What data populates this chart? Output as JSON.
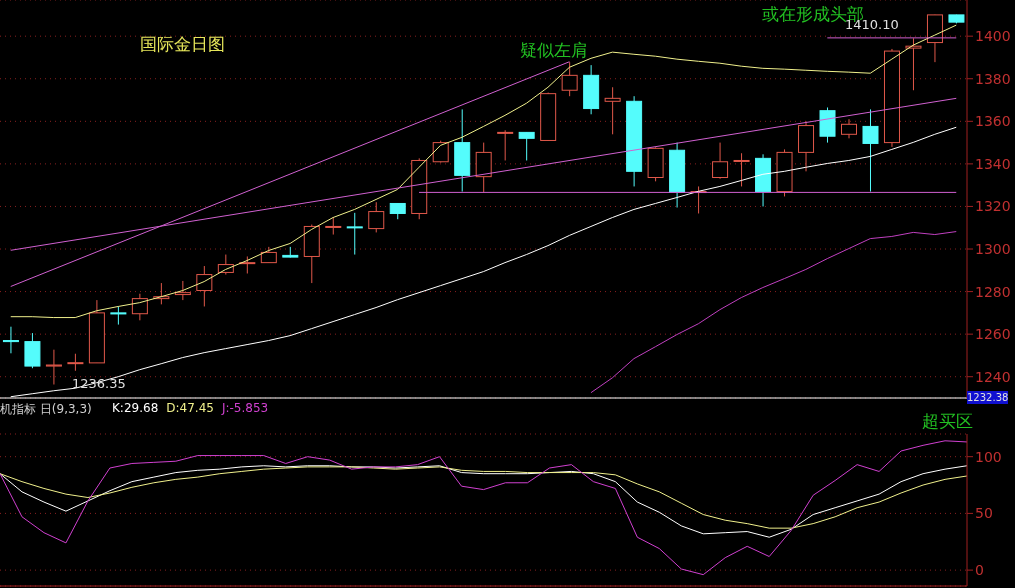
{
  "chart_data": [
    {
      "type": "candlestick",
      "title": "国际金日图",
      "categories": [
        null,
        null,
        null,
        null,
        null,
        null,
        null,
        null,
        null,
        null,
        null,
        null,
        null,
        null,
        null,
        null,
        null,
        null,
        null,
        null,
        null,
        null,
        null,
        null,
        null,
        null,
        null,
        null,
        null,
        null,
        null,
        null,
        null,
        null,
        null,
        null,
        null,
        null,
        null,
        null,
        null,
        null,
        null,
        null,
        null
      ],
      "ohlc": [
        [
          1257,
          1263.5,
          1251,
          1256.5
        ],
        [
          1256.5,
          1260.5,
          1244,
          1245
        ],
        [
          1245,
          1252.7,
          1236.35,
          1245.5
        ],
        [
          1246.2,
          1250.8,
          1242.8,
          1246.6
        ],
        [
          1246.5,
          1276,
          1246.5,
          1270
        ],
        [
          1270,
          1273,
          1264.5,
          1269.5
        ],
        [
          1269.6,
          1279,
          1266.5,
          1276.7
        ],
        [
          1276.7,
          1284,
          1274,
          1277.6
        ],
        [
          1278.6,
          1285,
          1276,
          1279.5
        ],
        [
          1280.5,
          1292,
          1273,
          1288
        ],
        [
          1289,
          1297.4,
          1288,
          1292.7
        ],
        [
          1293.2,
          1296.5,
          1288.5,
          1293.6
        ],
        [
          1293.6,
          1301,
          1293.6,
          1298.4
        ],
        [
          1297,
          1301,
          1296,
          1296.2
        ],
        [
          1296.5,
          1311.5,
          1284,
          1310.6
        ],
        [
          1310.2,
          1315,
          1306.8,
          1310.6
        ],
        [
          1310.4,
          1317,
          1297.4,
          1310
        ],
        [
          1309.6,
          1322,
          1307.8,
          1317.6
        ],
        [
          1321.4,
          1321.4,
          1314,
          1316.7
        ],
        [
          1316.7,
          1342.6,
          1314,
          1341.6
        ],
        [
          1341,
          1350.9,
          1340.6,
          1350
        ],
        [
          1350,
          1365.6,
          1327,
          1334.6
        ],
        [
          1334,
          1350,
          1326.6,
          1345.4
        ],
        [
          1354.4,
          1355.8,
          1341.6,
          1354.8
        ],
        [
          1354.8,
          1354.8,
          1341.6,
          1352
        ],
        [
          1351,
          1373.5,
          1351,
          1373
        ],
        [
          1374.6,
          1387.8,
          1371.8,
          1381.6
        ],
        [
          1381.6,
          1386.4,
          1363.3,
          1366
        ],
        [
          1369.4,
          1376,
          1353.9,
          1370.8
        ],
        [
          1369.4,
          1371.8,
          1329.4,
          1336.5
        ],
        [
          1333.6,
          1347.8,
          1331.8,
          1347.3
        ],
        [
          1346.4,
          1350,
          1319.5,
          1326.6
        ],
        [
          1326.6,
          1329.4,
          1316.7,
          1327
        ],
        [
          1333.6,
          1350,
          1333,
          1341
        ],
        [
          1341.2,
          1345,
          1329.4,
          1341.6
        ],
        [
          1342.6,
          1344.5,
          1320,
          1327
        ],
        [
          1327,
          1346.8,
          1324.7,
          1345.4
        ],
        [
          1345.4,
          1360,
          1336.5,
          1358
        ],
        [
          1365,
          1366.5,
          1350,
          1353
        ],
        [
          1353.9,
          1361,
          1352,
          1358.6
        ],
        [
          1357.6,
          1365.6,
          1327,
          1349.6
        ],
        [
          1350,
          1394,
          1348,
          1393
        ],
        [
          1394.4,
          1399,
          1374.6,
          1395.3
        ],
        [
          1397,
          1410.1,
          1387.8,
          1410
        ],
        [
          1410,
          1410.1,
          1406,
          1406.6
        ]
      ],
      "colors": [
        "#54fcfc",
        "#54fcfc",
        "#e0584a",
        "#e0584a",
        "#e0584a",
        "#54fcfc",
        "#e0584a",
        "#e0584a",
        "#e0584a",
        "#e0584a",
        "#e0584a",
        "#e0584a",
        "#e0584a",
        "#54fcfc",
        "#e0584a",
        "#e0584a",
        "#54fcfc",
        "#e0584a",
        "#54fcfc",
        "#e0584a",
        "#e0584a",
        "#54fcfc",
        "#e0584a",
        "#e0584a",
        "#54fcfc",
        "#e0584a",
        "#e0584a",
        "#54fcfc",
        "#e0584a",
        "#54fcfc",
        "#e0584a",
        "#54fcfc",
        "#e0584a",
        "#e0584a",
        "#e0584a",
        "#54fcfc",
        "#e0584a",
        "#e0584a",
        "#54fcfc",
        "#e0584a",
        "#54fcfc",
        "#e0584a",
        "#e0584a",
        "#e0584a",
        "#54fcfc"
      ],
      "series": [
        {
          "type": "line",
          "color": "#f0f08c",
          "values": [
            1268.2,
            1268.2,
            1267.8,
            1267.8,
            1271,
            1273,
            1274.8,
            1277.6,
            1280.5,
            1284.7,
            1290.4,
            1294.6,
            1299.3,
            1302.6,
            1309.2,
            1314.8,
            1318.6,
            1323.3,
            1328,
            1338.4,
            1348.7,
            1352.5,
            1357.6,
            1362.8,
            1368.5,
            1376,
            1385.4,
            1389.6,
            1392.5,
            1391.5,
            1390.6,
            1389.2,
            1388.2,
            1387.3,
            1385.9,
            1384.9,
            1384.5,
            1384,
            1383.5,
            1383.1,
            1382.6,
            1389.2,
            1395.8,
            1400.5,
            1405.2
          ]
        },
        {
          "type": "line",
          "color": "#ffffff",
          "values": [
            1230.6,
            1232,
            1233.4,
            1234.6,
            1237.2,
            1240,
            1243.3,
            1246.1,
            1249,
            1251.3,
            1253.2,
            1255.1,
            1257,
            1259.3,
            1262.6,
            1265.9,
            1269.2,
            1272.5,
            1276.2,
            1279.5,
            1282.8,
            1286.1,
            1289.4,
            1293.6,
            1297.4,
            1301.6,
            1306.4,
            1310.6,
            1314.8,
            1318.6,
            1321.4,
            1324.2,
            1327.1,
            1329.4,
            1332.2,
            1335.1,
            1336.5,
            1338.4,
            1340.2,
            1341.6,
            1343.5,
            1346.8,
            1350.1,
            1353.9,
            1357.2
          ]
        },
        {
          "type": "line",
          "color": "#c040c0",
          "values": [
            null,
            null,
            null,
            null,
            null,
            null,
            null,
            null,
            null,
            null,
            null,
            null,
            null,
            null,
            null,
            null,
            null,
            null,
            null,
            null,
            null,
            null,
            null,
            null,
            null,
            null,
            null,
            1232.5,
            1239.5,
            1248.5,
            1254.1,
            1259.8,
            1264.9,
            1271.5,
            1277.2,
            1281.9,
            1286.1,
            1290.4,
            1295.5,
            1300.2,
            1304.9,
            1305.9,
            1307.8,
            1306.8,
            1308.2
          ]
        },
        {
          "type": "line",
          "color": "#d060d0",
          "values": [
            1282.4,
            null,
            null,
            null,
            null,
            null,
            null,
            null,
            null,
            null,
            null,
            null,
            null,
            null,
            null,
            null,
            null,
            null,
            null,
            null,
            null,
            null,
            null,
            null,
            null,
            null,
            1388,
            null,
            null,
            null,
            null,
            null,
            null,
            null,
            null,
            null,
            null,
            null,
            null,
            null,
            null,
            null,
            null,
            null,
            null
          ]
        },
        {
          "type": "line",
          "color": "#d060d0",
          "values": [
            1299.4,
            null,
            null,
            null,
            null,
            null,
            null,
            null,
            null,
            null,
            null,
            null,
            null,
            null,
            null,
            null,
            null,
            null,
            null,
            null,
            null,
            null,
            null,
            null,
            null,
            null,
            null,
            null,
            null,
            null,
            null,
            null,
            null,
            null,
            null,
            null,
            null,
            null,
            null,
            null,
            null,
            null,
            null,
            null,
            1370.8
          ]
        },
        {
          "type": "line",
          "color": "#d060d0",
          "values": [
            null,
            null,
            null,
            null,
            null,
            null,
            null,
            null,
            null,
            null,
            null,
            null,
            null,
            null,
            null,
            null,
            null,
            null,
            null,
            1326.6,
            null,
            null,
            null,
            null,
            null,
            null,
            null,
            null,
            null,
            null,
            null,
            null,
            null,
            null,
            null,
            null,
            null,
            null,
            null,
            null,
            null,
            null,
            null,
            null,
            1326.6
          ]
        },
        {
          "type": "line",
          "color": "#d060d0",
          "values": [
            null,
            null,
            null,
            null,
            null,
            null,
            null,
            null,
            null,
            null,
            null,
            null,
            null,
            null,
            null,
            null,
            null,
            null,
            null,
            null,
            null,
            null,
            null,
            null,
            null,
            null,
            null,
            null,
            null,
            null,
            null,
            null,
            null,
            null,
            null,
            null,
            null,
            null,
            1399.2,
            null,
            null,
            null,
            null,
            null,
            1399.2
          ]
        }
      ],
      "ylim": [
        1230,
        1417
      ],
      "yticks": [
        1240,
        1260,
        1280,
        1300,
        1320,
        1340,
        1360,
        1380,
        1400
      ],
      "grid": "y",
      "tick_labels": "y",
      "annotations": [
        "疑似左肩",
        "或在形成头部",
        "1232.38",
        "1236.35",
        "1410.10"
      ]
    },
    {
      "type": "line",
      "title": "机指标 日(9,3,3)",
      "categories": [
        null,
        null,
        null,
        null,
        null,
        null,
        null,
        null,
        null,
        null,
        null,
        null,
        null,
        null,
        null,
        null,
        null,
        null,
        null,
        null,
        null,
        null,
        null,
        null,
        null,
        null,
        null,
        null,
        null,
        null,
        null,
        null,
        null,
        null,
        null,
        null,
        null,
        null,
        null,
        null,
        null,
        null,
        null,
        null,
        null
      ],
      "series": [
        {
          "name": "K:29.68",
          "color": "#ffffff",
          "values": [
            85,
            69,
            60,
            52,
            61,
            70,
            78,
            82,
            86,
            88,
            89,
            91,
            92,
            91,
            92,
            92,
            91,
            91,
            90,
            91,
            92,
            86,
            85,
            85,
            85,
            86,
            87,
            85,
            78,
            60,
            51,
            39,
            32,
            33,
            34,
            29,
            36,
            49,
            55,
            61,
            67,
            78,
            85,
            89,
            92
          ]
        },
        {
          "name": "D:47.45",
          "color": "#f0f08c",
          "values": [
            85,
            78,
            72,
            67,
            64,
            68,
            73,
            77,
            80,
            82,
            85,
            87,
            89,
            90,
            91,
            91,
            91,
            90,
            89,
            90,
            91,
            88,
            87,
            87,
            86,
            86,
            86,
            86,
            84,
            76,
            69,
            59,
            49,
            44,
            41,
            37,
            37,
            41,
            47,
            55,
            60,
            68,
            75,
            80,
            83
          ]
        },
        {
          "name": "J:-5.853",
          "color": "#d040d0",
          "values": [
            85,
            47,
            33,
            24,
            61,
            90,
            94,
            95,
            96,
            101,
            101,
            101,
            101,
            94,
            100,
            97,
            89,
            91,
            91,
            93,
            100,
            74,
            71,
            77,
            77,
            90,
            93,
            78,
            72,
            29,
            19,
            1,
            -4,
            11,
            21,
            12,
            35,
            66,
            79,
            93,
            87,
            105,
            110,
            114,
            113
          ]
        }
      ],
      "ylim": [
        -14,
        120
      ],
      "yticks": [
        0,
        50,
        100
      ],
      "grid": "y",
      "tick_labels": "y",
      "legend": "top left",
      "annotations": [
        "超买区"
      ]
    }
  ]
}
